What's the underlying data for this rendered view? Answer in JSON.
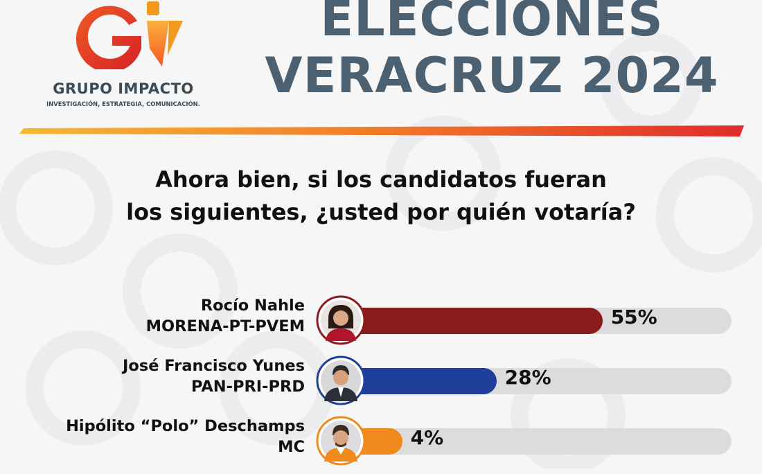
{
  "brand": {
    "name": "GRUPO IMPACTO",
    "tagline": "INVESTIGACIÓN, ESTRATEGIA, COMUNICACIÓN.",
    "colors": {
      "red": "#e8312a",
      "orange": "#f39a1e",
      "slate": "#4b6070"
    }
  },
  "title": {
    "line1": "ELECCIONES",
    "line2": "VERACRUZ 2024"
  },
  "question": {
    "line1": "Ahora bien, si los candidatos fueran",
    "line2": "los siguientes, ¿usted por quién votaría?"
  },
  "chart_data": {
    "type": "bar",
    "orientation": "horizontal",
    "ylim": [
      0,
      100
    ],
    "categories": [
      "Rocío Nahle",
      "José Francisco Yunes",
      "Hipólito “Polo” Deschamps"
    ],
    "series": [
      {
        "values": [
          55,
          28,
          4
        ],
        "labels": [
          "55%",
          "28%",
          "4%"
        ],
        "parties": [
          "MORENA-PT-PVEM",
          "PAN-PRI-PRD",
          "MC"
        ],
        "colors": [
          "#8b1a1a",
          "#1f3f9a",
          "#f08a1c"
        ]
      }
    ]
  }
}
